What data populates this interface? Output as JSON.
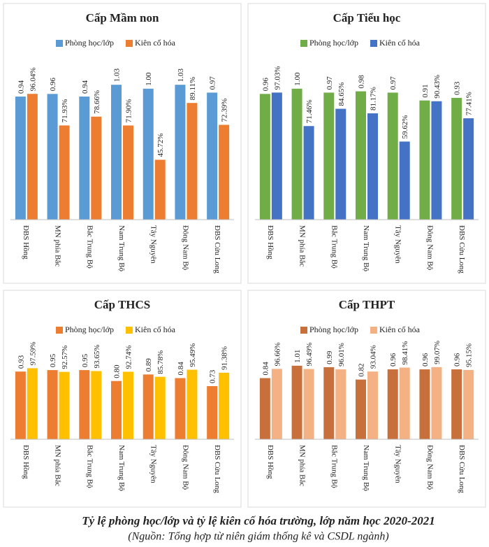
{
  "chart_data": [
    {
      "type": "bar",
      "title": "Cấp Mầm non",
      "categories": [
        "ĐBS Hồng",
        "MN phía Bắc",
        "Bắc Trung Bộ",
        "Nam Trung Bộ",
        "Tây Nguyên",
        "Đông Nam Bộ",
        "ĐBS Cửu Long"
      ],
      "series": [
        {
          "name": "Phòng học/lớp",
          "color": "#5b9bd5",
          "values": [
            0.94,
            0.96,
            0.94,
            1.03,
            1.0,
            1.03,
            0.97
          ],
          "value_labels": [
            "0.94",
            "0.96",
            "0.94",
            "1.03",
            "1.00",
            "1.03",
            "0.97"
          ]
        },
        {
          "name": "Kiên cố hóa",
          "color": "#ed7d31",
          "axis": "y2",
          "values": [
            96.04,
            71.93,
            78.66,
            71.9,
            45.72,
            89.11,
            72.39
          ],
          "value_labels": [
            "96.04%",
            "71.93%",
            "78.66%",
            "71.90%",
            "45.72%",
            "89.11%",
            "72.39%"
          ]
        }
      ],
      "ylim": [
        0,
        1.25
      ],
      "y2lim": [
        0,
        125
      ],
      "legend": "top"
    },
    {
      "type": "bar",
      "title": "Cấp Tiểu học",
      "categories": [
        "ĐBS Hồng",
        "MN phía Bắc",
        "Bắc Trung Bộ",
        "Nam Trung Bộ",
        "Tây Nguyên",
        "Đông Nam Bộ",
        "ĐBS Cửu Long"
      ],
      "series": [
        {
          "name": "Phòng học/lớp",
          "color": "#70ad47",
          "values": [
            0.96,
            1.0,
            0.97,
            0.98,
            0.97,
            0.91,
            0.93
          ],
          "value_labels": [
            "0.96",
            "1.00",
            "0.97",
            "0.98",
            "0.97",
            "0.91",
            "0.93"
          ]
        },
        {
          "name": "Kiên cố hóa",
          "color": "#4472c4",
          "axis": "y2",
          "values": [
            97.03,
            71.46,
            84.65,
            81.17,
            59.62,
            90.43,
            77.41
          ],
          "value_labels": [
            "97.03%",
            "71.46%",
            "84.65%",
            "81.17%",
            "59.62%",
            "90.43%",
            "77.41%"
          ]
        }
      ],
      "ylim": [
        0,
        1.25
      ],
      "y2lim": [
        0,
        125
      ],
      "legend": "top"
    },
    {
      "type": "bar",
      "title": "Cấp THCS",
      "categories": [
        "ĐBS Hồng",
        "MN phía Bắc",
        "Bắc Trung Bộ",
        "Nam Trung Bộ",
        "Tây Nguyên",
        "Đông Nam Bộ",
        "ĐBS Cửu Long"
      ],
      "series": [
        {
          "name": "Phòng học/lớp",
          "color": "#ed7d31",
          "values": [
            0.93,
            0.95,
            0.95,
            0.8,
            0.89,
            0.84,
            0.73
          ],
          "value_labels": [
            "0.93",
            "0.95",
            "0.95",
            "0.80",
            "0.89",
            "0.84",
            "0.73"
          ]
        },
        {
          "name": "Kiên cố hóa",
          "color": "#ffc000",
          "axis": "y2",
          "values": [
            97.59,
            92.57,
            93.65,
            92.74,
            85.78,
            95.49,
            91.38
          ],
          "value_labels": [
            "97.59%",
            "92.57%",
            "93.65%",
            "92.74%",
            "85.78%",
            "95.49%",
            "91.38%"
          ]
        }
      ],
      "ylim": [
        0,
        1.7
      ],
      "y2lim": [
        0,
        170
      ],
      "legend": "top"
    },
    {
      "type": "bar",
      "title": "Cấp THPT",
      "categories": [
        "ĐBS Hồng",
        "MN phía Bắc",
        "Bắc Trung Bộ",
        "Nam Trung Bộ",
        "Tây Nguyên",
        "Đông Nam Bộ",
        "ĐBS Cửu Long"
      ],
      "series": [
        {
          "name": "Phòng học/lớp",
          "color": "#c8703c",
          "values": [
            0.84,
            1.01,
            0.99,
            0.82,
            0.96,
            0.96,
            0.96
          ],
          "value_labels": [
            "0.84",
            "1.01",
            "0.99",
            "0.82",
            "0.96",
            "0.96",
            "0.96"
          ]
        },
        {
          "name": "Kiên cố hóa",
          "color": "#f4b183",
          "axis": "y2",
          "values": [
            96.66,
            96.49,
            96.01,
            93.04,
            98.41,
            99.07,
            95.15
          ],
          "value_labels": [
            "96.66%",
            "96.49%",
            "96.01%",
            "93.04%",
            "98.41%",
            "99.07%",
            "95.15%"
          ]
        }
      ],
      "ylim": [
        0,
        1.7
      ],
      "y2lim": [
        0,
        170
      ],
      "legend": "top"
    }
  ],
  "caption": {
    "title": "Tỷ lệ phòng học/lớp và tỷ lệ kiên cố hóa trường, lớp năm học 2020-2021",
    "source": "(Nguồn: Tổng hợp từ niên giám thống kê và CSDL ngành)"
  }
}
